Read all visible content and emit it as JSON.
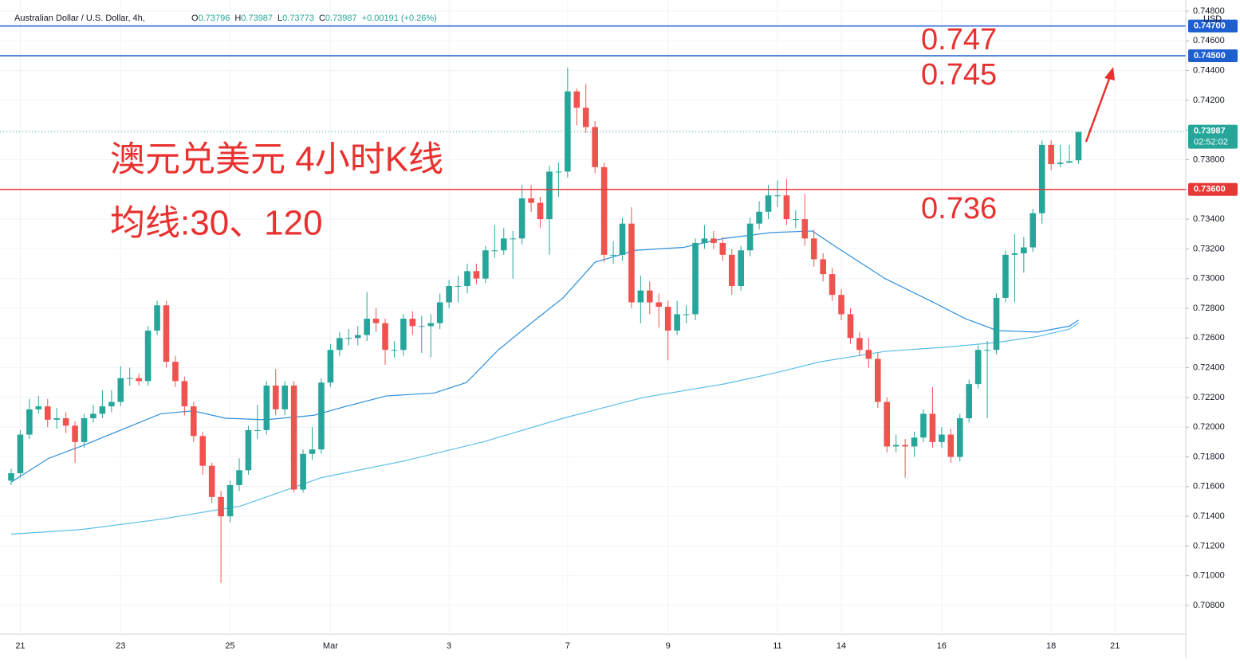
{
  "header": {
    "symbol": "Australian Dollar / U.S. Dollar, 4h,",
    "ohlc": [
      {
        "key": "O",
        "value": "0.73796"
      },
      {
        "key": "H",
        "value": "0.73987"
      },
      {
        "key": "L",
        "value": "0.73773"
      },
      {
        "key": "C",
        "value": "0.73987"
      }
    ],
    "change": "+0.00191 (+0.26%)",
    "currency": "USD"
  },
  "chart_data": {
    "type": "candlestick",
    "title": "澳元兑美元 4小时K线",
    "subtitle": "均线:30、120",
    "categories": [
      null,
      "21",
      null,
      null,
      null,
      null,
      null,
      null,
      null,
      null,
      null,
      null,
      "23",
      null,
      null,
      null,
      null,
      null,
      null,
      null,
      null,
      null,
      null,
      null,
      "25",
      null,
      null,
      null,
      null,
      null,
      null,
      null,
      null,
      null,
      null,
      "Mar",
      null,
      null,
      null,
      null,
      null,
      null,
      null,
      null,
      null,
      null,
      null,
      null,
      "3",
      null,
      null,
      null,
      null,
      null,
      null,
      null,
      null,
      null,
      null,
      null,
      null,
      "7",
      null,
      null,
      null,
      null,
      null,
      null,
      null,
      null,
      null,
      null,
      "9",
      null,
      null,
      null,
      null,
      null,
      null,
      null,
      null,
      null,
      null,
      null,
      "11",
      null,
      null,
      null,
      null,
      null,
      null,
      "14",
      null,
      null,
      null,
      null,
      null,
      null,
      null,
      null,
      null,
      null,
      "16",
      null,
      null,
      null,
      null,
      null,
      null,
      null,
      null,
      null,
      null,
      null,
      "18",
      null,
      null,
      null,
      null,
      null,
      null,
      "21"
    ],
    "open": [
      0.7164,
      0.7169,
      0.7195,
      0.7212,
      0.7214,
      0.7205,
      0.7206,
      0.7201,
      0.719,
      0.7206,
      0.7209,
      0.7214,
      0.7217,
      0.7233,
      0.7233,
      0.7231,
      0.7265,
      0.7282,
      0.7244,
      0.7231,
      0.7214,
      0.7194,
      0.7174,
      0.7153,
      0.714,
      0.7161,
      0.7171,
      0.7198,
      0.7198,
      0.7228,
      0.7212,
      0.7228,
      0.7158,
      0.7182,
      0.7185,
      0.723,
      0.7252,
      0.726,
      0.726,
      0.7262,
      0.7273,
      0.727,
      0.7252,
      0.7252,
      0.7273,
      0.7268,
      0.7268,
      0.727,
      0.7284,
      0.7295,
      0.7295,
      0.7305,
      0.73,
      0.7319,
      0.7319,
      0.7327,
      0.7327,
      0.7354,
      0.7351,
      0.734,
      0.7372,
      0.7372,
      0.7426,
      0.7415,
      0.7402,
      0.7375,
      0.7316,
      0.7316,
      0.7337,
      0.7284,
      0.7292,
      0.7284,
      0.7281,
      0.7265,
      0.7276,
      0.7276,
      0.7324,
      0.7327,
      0.7324,
      0.7316,
      0.7295,
      0.7319,
      0.7337,
      0.7345,
      0.7356,
      0.7356,
      0.734,
      0.734,
      0.7327,
      0.7313,
      0.7303,
      0.7289,
      0.7276,
      0.726,
      0.7252,
      0.7246,
      0.7217,
      0.7187,
      0.7188,
      0.7187,
      0.7193,
      0.7209,
      0.719,
      0.7195,
      0.718,
      0.7206,
      0.7229,
      0.7252,
      0.7252,
      0.7287,
      0.7316,
      0.7317,
      0.7321,
      0.7344,
      0.739,
      0.7377,
      0.7378,
      0.73796,
      null,
      null,
      null,
      null
    ],
    "high": [
      0.7172,
      0.7198,
      0.7219,
      0.7221,
      0.7219,
      0.7213,
      0.721,
      0.7204,
      0.7209,
      0.7215,
      0.7225,
      0.7225,
      0.7241,
      0.724,
      0.7236,
      0.7268,
      0.7285,
      0.7285,
      0.7248,
      0.7234,
      0.7217,
      0.7197,
      0.7176,
      0.7157,
      0.7164,
      0.7179,
      0.7201,
      0.7215,
      0.7231,
      0.7239,
      0.7231,
      0.7231,
      0.7185,
      0.72,
      0.7233,
      0.7256,
      0.7264,
      0.7266,
      0.7268,
      0.7291,
      0.728,
      0.7273,
      0.7258,
      0.7276,
      0.7278,
      0.7275,
      0.7276,
      0.729,
      0.7299,
      0.7302,
      0.731,
      0.731,
      0.7322,
      0.7336,
      0.7334,
      0.7332,
      0.7363,
      0.7363,
      0.7355,
      0.7376,
      0.7378,
      0.7442,
      0.7428,
      0.7431,
      0.7406,
      0.7378,
      0.7325,
      0.7341,
      0.7348,
      0.7302,
      0.7298,
      0.729,
      0.7285,
      0.7285,
      0.7282,
      0.7327,
      0.7336,
      0.7332,
      0.7328,
      0.732,
      0.7322,
      0.7341,
      0.7352,
      0.7363,
      0.7366,
      0.7367,
      0.7346,
      0.7357,
      0.7333,
      0.7317,
      0.7307,
      0.7293,
      0.728,
      0.7264,
      0.726,
      0.725,
      0.722,
      0.7195,
      0.7192,
      0.7197,
      0.7212,
      0.7227,
      0.72,
      0.7199,
      0.7209,
      0.7232,
      0.7255,
      0.7258,
      0.729,
      0.7319,
      0.733,
      0.7328,
      0.7347,
      0.7393,
      0.7393,
      0.739,
      0.739,
      0.73987,
      null,
      null,
      null,
      null
    ],
    "low": [
      0.7161,
      0.7166,
      0.7192,
      0.7209,
      0.72,
      0.7199,
      0.7196,
      0.7176,
      0.7186,
      0.7203,
      0.7206,
      0.721,
      0.7214,
      0.7228,
      0.7228,
      0.7228,
      0.7262,
      0.724,
      0.7227,
      0.7208,
      0.719,
      0.7168,
      0.7149,
      0.7095,
      0.7136,
      0.7157,
      0.7168,
      0.7192,
      0.7195,
      0.7208,
      0.7208,
      0.7156,
      0.7156,
      0.7178,
      0.7182,
      0.7227,
      0.7248,
      0.7255,
      0.7255,
      0.7258,
      0.7264,
      0.7242,
      0.7247,
      0.7248,
      0.7262,
      0.725,
      0.7247,
      0.7266,
      0.728,
      0.7284,
      0.729,
      0.7296,
      0.7297,
      0.7314,
      0.7316,
      0.73,
      0.7323,
      0.7345,
      0.7334,
      0.7316,
      0.7355,
      0.7368,
      0.7403,
      0.7398,
      0.7371,
      0.7311,
      0.731,
      0.7312,
      0.728,
      0.727,
      0.7276,
      0.7267,
      0.7245,
      0.7262,
      0.727,
      0.7272,
      0.732,
      0.732,
      0.7312,
      0.7289,
      0.7292,
      0.7315,
      0.7333,
      0.734,
      0.7348,
      0.7336,
      0.7334,
      0.7322,
      0.7308,
      0.7298,
      0.7285,
      0.7272,
      0.7256,
      0.7248,
      0.724,
      0.7213,
      0.7183,
      0.7183,
      0.7166,
      0.718,
      0.719,
      0.7186,
      0.7186,
      0.7176,
      0.7177,
      0.7203,
      0.7226,
      0.7206,
      0.7249,
      0.7284,
      0.7284,
      0.7304,
      0.7318,
      0.7337,
      0.7373,
      0.7375,
      0.7378,
      0.73773,
      null,
      null,
      null,
      null
    ],
    "close": [
      0.7169,
      0.7195,
      0.7212,
      0.7214,
      0.7205,
      0.7206,
      0.7201,
      0.719,
      0.7206,
      0.7209,
      0.7214,
      0.7217,
      0.7233,
      0.7233,
      0.7231,
      0.7265,
      0.7282,
      0.7244,
      0.7231,
      0.7214,
      0.7194,
      0.7174,
      0.7153,
      0.714,
      0.7161,
      0.7171,
      0.7198,
      0.7198,
      0.7228,
      0.7212,
      0.7228,
      0.7158,
      0.7182,
      0.7185,
      0.723,
      0.7252,
      0.726,
      0.726,
      0.7262,
      0.7273,
      0.727,
      0.7252,
      0.7252,
      0.7273,
      0.7268,
      0.7268,
      0.727,
      0.7284,
      0.7295,
      0.7295,
      0.7305,
      0.73,
      0.7319,
      0.7319,
      0.7327,
      0.7327,
      0.7354,
      0.7351,
      0.734,
      0.7372,
      0.7372,
      0.7426,
      0.7415,
      0.7402,
      0.7375,
      0.7316,
      0.7316,
      0.7337,
      0.7284,
      0.7292,
      0.7284,
      0.7281,
      0.7265,
      0.7276,
      0.7276,
      0.7324,
      0.7327,
      0.7324,
      0.7316,
      0.7295,
      0.7319,
      0.7337,
      0.7345,
      0.7356,
      0.7356,
      0.734,
      0.734,
      0.7327,
      0.7313,
      0.7303,
      0.7289,
      0.7276,
      0.726,
      0.7252,
      0.7246,
      0.7217,
      0.7187,
      0.7188,
      0.7187,
      0.7193,
      0.7209,
      0.719,
      0.7195,
      0.718,
      0.7206,
      0.7229,
      0.7252,
      0.7252,
      0.7287,
      0.7316,
      0.7317,
      0.7321,
      0.7344,
      0.739,
      0.7377,
      0.7378,
      0.7379,
      0.73987,
      null,
      null,
      null,
      null
    ],
    "up_color": "#26a69a",
    "down_color": "#ef5350",
    "lines": [
      {
        "color": "#2e8fdc",
        "x": [
          0,
          4.1,
          7.6,
          12,
          16.4,
          19.9,
          23.5,
          27.9,
          33.2,
          36.7,
          41.1,
          46.4,
          49.9,
          53.4,
          57,
          60.5,
          64,
          68.4,
          73.7,
          78.1,
          83.4,
          87.8,
          90.5,
          95.8,
          101.1,
          104.6,
          108.1,
          112.5,
          116,
          117
        ],
        "values": [
          0.7163,
          0.7179,
          0.7187,
          0.7198,
          0.7209,
          0.7211,
          0.7206,
          0.7205,
          0.7208,
          0.7214,
          0.7221,
          0.7223,
          0.723,
          0.7252,
          0.727,
          0.7287,
          0.7311,
          0.7319,
          0.7321,
          0.7327,
          0.7331,
          0.7332,
          0.7321,
          0.73,
          0.7284,
          0.7273,
          0.7265,
          0.7264,
          0.7268,
          0.7272
        ]
      },
      {
        "color": "#5bbfe6",
        "x": [
          0,
          7.6,
          16.4,
          25.2,
          34,
          42.9,
          51.7,
          60.5,
          64.9,
          69.3,
          78.1,
          83.4,
          88.7,
          95.8,
          102.8,
          108.1,
          112.5,
          116,
          117
        ],
        "values": [
          0.7128,
          0.7131,
          0.7138,
          0.7147,
          0.7166,
          0.7177,
          0.719,
          0.7206,
          0.7213,
          0.722,
          0.7229,
          0.7236,
          0.7244,
          0.7251,
          0.7254,
          0.7257,
          0.7261,
          0.7266,
          0.727
        ]
      }
    ],
    "hlines": [
      {
        "value": 0.747,
        "label": "0.74700",
        "color": "#1e5fd0"
      },
      {
        "value": 0.745,
        "label": "0.74500",
        "color": "#1e5fd0"
      },
      {
        "value": 0.736,
        "label": "0.73600",
        "color": "#e53935"
      }
    ],
    "last_price": {
      "value": 0.73987,
      "label": "0.73987",
      "countdown": "02:52:02",
      "color": "#26a69a"
    },
    "ylim": [
      0.708,
      0.748
    ],
    "yticks": [
      {
        "value": 0.708,
        "label": "0.70800"
      },
      {
        "value": 0.71,
        "label": "0.71000"
      },
      {
        "value": 0.712,
        "label": "0.71200"
      },
      {
        "value": 0.714,
        "label": "0.71400"
      },
      {
        "value": 0.716,
        "label": "0.71600"
      },
      {
        "value": 0.718,
        "label": "0.71800"
      },
      {
        "value": 0.72,
        "label": "0.72000"
      },
      {
        "value": 0.722,
        "label": "0.72200"
      },
      {
        "value": 0.724,
        "label": "0.72400"
      },
      {
        "value": 0.726,
        "label": "0.72600"
      },
      {
        "value": 0.728,
        "label": "0.72800"
      },
      {
        "value": 0.73,
        "label": "0.73000"
      },
      {
        "value": 0.732,
        "label": "0.73200"
      },
      {
        "value": 0.734,
        "label": "0.73400"
      },
      {
        "value": 0.736,
        "label": "0.73600"
      },
      {
        "value": 0.738,
        "label": "0.73800"
      },
      {
        "value": 0.74,
        "label": "0.74000"
      },
      {
        "value": 0.742,
        "label": "0.74200"
      },
      {
        "value": 0.744,
        "label": "0.74400"
      },
      {
        "value": 0.746,
        "label": "0.74600"
      },
      {
        "value": 0.748,
        "label": "0.74800"
      }
    ],
    "grid": true
  }
}
